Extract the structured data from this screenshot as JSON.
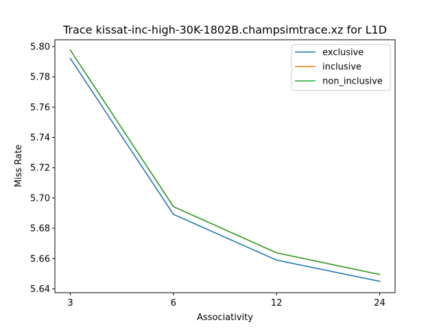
{
  "chart_data": {
    "type": "line",
    "title": "Trace kissat-inc-high-30K-1802B.champsimtrace.xz for L1D",
    "xlabel": "Associativity",
    "ylabel": "Miss Rate",
    "categories": [
      "3",
      "6",
      "12",
      "24"
    ],
    "ylim": [
      5.6375,
      5.8045
    ],
    "yticks": [
      5.64,
      5.66,
      5.68,
      5.7,
      5.72,
      5.74,
      5.76,
      5.78,
      5.8
    ],
    "yticklabels": [
      "5.64",
      "5.66",
      "5.68",
      "5.70",
      "5.72",
      "5.74",
      "5.76",
      "5.78",
      "5.80"
    ],
    "grid": false,
    "legend_position": "top-right",
    "series": [
      {
        "name": "exclusive",
        "color": "#1f77b4",
        "values": [
          5.7922,
          5.6892,
          5.659,
          5.645
        ]
      },
      {
        "name": "inclusive",
        "color": "#ff7f0e",
        "values": [
          5.7977,
          5.6943,
          5.6638,
          5.6495
        ]
      },
      {
        "name": "non_inclusive",
        "color": "#2ca02c",
        "values": [
          5.7977,
          5.6943,
          5.6638,
          5.6495
        ]
      }
    ]
  }
}
